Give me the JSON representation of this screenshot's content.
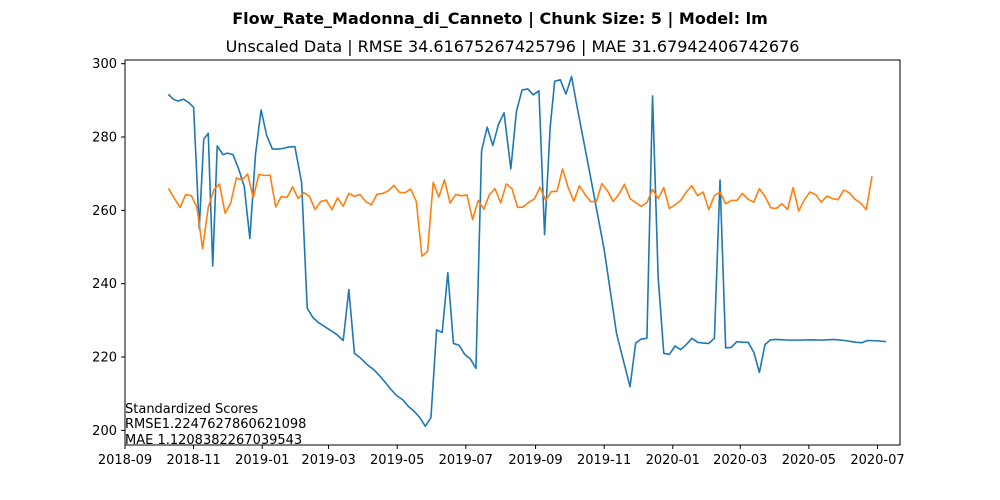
{
  "chart_data": {
    "type": "line",
    "title": "Flow_Rate_Madonna_di_Canneto | Chunk Size: 5 | Model: lm",
    "subtitle": "Unscaled Data | RMSE 34.61675267425796 | MAE 31.67942406742676",
    "xlabel": "",
    "ylabel": "",
    "grid": false,
    "x_ticks": [
      "2018-09",
      "2018-11",
      "2019-01",
      "2019-03",
      "2019-05",
      "2019-07",
      "2019-09",
      "2019-11",
      "2020-01",
      "2020-03",
      "2020-05",
      "2020-07"
    ],
    "y_ticks": [
      200,
      220,
      240,
      260,
      280,
      300
    ],
    "xlim": [
      "2018-09-01",
      "2020-07-21"
    ],
    "ylim": [
      196,
      301
    ],
    "colors": [
      "#1f77b4",
      "#ff7f0e"
    ],
    "series": [
      {
        "points": [
          [
            "2018-10-10",
            291.5
          ],
          [
            "2018-10-14",
            290.3
          ],
          [
            "2018-10-18",
            289.8
          ],
          [
            "2018-10-23",
            290.3
          ],
          [
            "2018-10-28",
            289.3
          ],
          [
            "2018-11-01",
            288.1
          ],
          [
            "2018-11-06",
            255.0
          ],
          [
            "2018-11-10",
            279.4
          ],
          [
            "2018-11-14",
            281.0
          ],
          [
            "2018-11-18",
            244.8
          ],
          [
            "2018-11-22",
            277.6
          ],
          [
            "2018-11-27",
            275.2
          ],
          [
            "2018-12-01",
            275.6
          ],
          [
            "2018-12-06",
            275.2
          ],
          [
            "2018-12-11",
            271.3
          ],
          [
            "2018-12-16",
            266.5
          ],
          [
            "2018-12-21",
            252.3
          ],
          [
            "2018-12-26",
            275.2
          ],
          [
            "2018-12-31",
            287.4
          ],
          [
            "2019-01-05",
            280.4
          ],
          [
            "2019-01-10",
            276.7
          ],
          [
            "2019-01-15",
            276.7
          ],
          [
            "2019-01-20",
            276.9
          ],
          [
            "2019-01-25",
            277.3
          ],
          [
            "2019-01-30",
            277.4
          ],
          [
            "2019-02-05",
            267.6
          ],
          [
            "2019-02-10",
            233.3
          ],
          [
            "2019-02-15",
            230.8
          ],
          [
            "2019-02-20",
            229.4
          ],
          [
            "2019-02-26",
            228.2
          ],
          [
            "2019-03-03",
            227.2
          ],
          [
            "2019-03-08",
            226.2
          ],
          [
            "2019-03-14",
            224.5
          ],
          [
            "2019-03-19",
            238.4
          ],
          [
            "2019-03-24",
            221.0
          ],
          [
            "2019-03-29",
            219.8
          ],
          [
            "2019-04-04",
            218.0
          ],
          [
            "2019-04-10",
            216.6
          ],
          [
            "2019-04-15",
            215.0
          ],
          [
            "2019-04-20",
            213.2
          ],
          [
            "2019-04-25",
            211.3
          ],
          [
            "2019-04-30",
            209.6
          ],
          [
            "2019-05-06",
            208.3
          ],
          [
            "2019-05-11",
            206.5
          ],
          [
            "2019-05-16",
            205.2
          ],
          [
            "2019-05-21",
            203.5
          ],
          [
            "2019-05-26",
            201.1
          ],
          [
            "2019-05-31",
            203.5
          ],
          [
            "2019-06-05",
            227.4
          ],
          [
            "2019-06-10",
            226.7
          ],
          [
            "2019-06-15",
            243.0
          ],
          [
            "2019-06-20",
            223.7
          ],
          [
            "2019-06-25",
            223.2
          ],
          [
            "2019-06-30",
            220.7
          ],
          [
            "2019-07-05",
            219.5
          ],
          [
            "2019-07-10",
            216.9
          ],
          [
            "2019-07-15",
            276.2
          ],
          [
            "2019-07-20",
            282.7
          ],
          [
            "2019-07-25",
            277.7
          ],
          [
            "2019-07-30",
            283.4
          ],
          [
            "2019-08-04",
            286.6
          ],
          [
            "2019-08-10",
            271.3
          ],
          [
            "2019-08-15",
            287.0
          ],
          [
            "2019-08-20",
            292.8
          ],
          [
            "2019-08-25",
            293.1
          ],
          [
            "2019-08-30",
            291.5
          ],
          [
            "2019-09-04",
            292.6
          ],
          [
            "2019-09-09",
            253.4
          ],
          [
            "2019-09-14",
            282.7
          ],
          [
            "2019-09-18",
            295.2
          ],
          [
            "2019-09-23",
            295.6
          ],
          [
            "2019-09-28",
            291.7
          ],
          [
            "2019-10-03",
            296.5
          ],
          [
            "2019-10-08",
            288.1
          ],
          [
            "2019-10-19",
            270.5
          ],
          [
            "2019-11-01",
            249.3
          ],
          [
            "2019-11-12",
            226.4
          ],
          [
            "2019-11-24",
            211.9
          ],
          [
            "2019-11-29",
            223.8
          ],
          [
            "2019-12-04",
            224.9
          ],
          [
            "2019-12-09",
            225.1
          ],
          [
            "2019-12-14",
            291.2
          ],
          [
            "2019-12-19",
            241.7
          ],
          [
            "2019-12-24",
            221.0
          ],
          [
            "2019-12-29",
            220.7
          ],
          [
            "2020-01-03",
            223.0
          ],
          [
            "2020-01-08",
            222.0
          ],
          [
            "2020-01-13",
            223.4
          ],
          [
            "2020-01-18",
            225.1
          ],
          [
            "2020-01-23",
            224.0
          ],
          [
            "2020-01-28",
            223.8
          ],
          [
            "2020-02-02",
            223.7
          ],
          [
            "2020-02-07",
            225.1
          ],
          [
            "2020-02-12",
            268.3
          ],
          [
            "2020-02-17",
            222.5
          ],
          [
            "2020-02-22",
            222.6
          ],
          [
            "2020-02-27",
            224.2
          ],
          [
            "2020-03-03",
            224.0
          ],
          [
            "2020-03-08",
            224.0
          ],
          [
            "2020-03-13",
            221.3
          ],
          [
            "2020-03-18",
            215.8
          ],
          [
            "2020-03-23",
            223.4
          ],
          [
            "2020-03-28",
            224.7
          ],
          [
            "2020-04-02",
            224.8
          ],
          [
            "2020-04-13",
            224.6
          ],
          [
            "2020-04-23",
            224.6
          ],
          [
            "2020-05-03",
            224.7
          ],
          [
            "2020-05-13",
            224.6
          ],
          [
            "2020-05-23",
            224.8
          ],
          [
            "2020-06-02",
            224.5
          ],
          [
            "2020-06-12",
            224.0
          ],
          [
            "2020-06-17",
            223.9
          ],
          [
            "2020-06-22",
            224.5
          ],
          [
            "2020-07-02",
            224.4
          ],
          [
            "2020-07-08",
            224.2
          ]
        ]
      },
      {
        "points": [
          [
            "2018-10-10",
            265.8
          ],
          [
            "2018-10-15",
            263.2
          ],
          [
            "2018-10-20",
            260.8
          ],
          [
            "2018-10-25",
            264.3
          ],
          [
            "2018-10-30",
            264.0
          ],
          [
            "2018-11-04",
            260.8
          ],
          [
            "2018-11-09",
            249.5
          ],
          [
            "2018-11-14",
            260.8
          ],
          [
            "2018-11-19",
            265.6
          ],
          [
            "2018-11-24",
            267.2
          ],
          [
            "2018-11-29",
            259.2
          ],
          [
            "2018-12-04",
            262.0
          ],
          [
            "2018-12-09",
            268.8
          ],
          [
            "2018-12-14",
            268.3
          ],
          [
            "2018-12-19",
            269.9
          ],
          [
            "2018-12-24",
            263.4
          ],
          [
            "2018-12-29",
            269.8
          ],
          [
            "2019-01-03",
            269.5
          ],
          [
            "2019-01-08",
            269.6
          ],
          [
            "2019-01-13",
            260.9
          ],
          [
            "2019-01-18",
            263.8
          ],
          [
            "2019-01-23",
            263.5
          ],
          [
            "2019-01-28",
            266.4
          ],
          [
            "2019-02-02",
            263.2
          ],
          [
            "2019-02-07",
            264.8
          ],
          [
            "2019-02-12",
            263.8
          ],
          [
            "2019-02-17",
            260.2
          ],
          [
            "2019-02-22",
            262.4
          ],
          [
            "2019-02-27",
            262.8
          ],
          [
            "2019-03-04",
            260.2
          ],
          [
            "2019-03-09",
            263.4
          ],
          [
            "2019-03-14",
            261.1
          ],
          [
            "2019-03-19",
            264.6
          ],
          [
            "2019-03-24",
            263.8
          ],
          [
            "2019-03-29",
            264.3
          ],
          [
            "2019-04-03",
            262.4
          ],
          [
            "2019-04-08",
            261.5
          ],
          [
            "2019-04-13",
            264.4
          ],
          [
            "2019-04-18",
            264.6
          ],
          [
            "2019-04-23",
            265.3
          ],
          [
            "2019-04-28",
            266.8
          ],
          [
            "2019-05-03",
            264.9
          ],
          [
            "2019-05-08",
            264.8
          ],
          [
            "2019-05-13",
            265.8
          ],
          [
            "2019-05-18",
            262.4
          ],
          [
            "2019-05-23",
            247.5
          ],
          [
            "2019-05-28",
            248.8
          ],
          [
            "2019-06-02",
            267.6
          ],
          [
            "2019-06-07",
            263.6
          ],
          [
            "2019-06-12",
            268.3
          ],
          [
            "2019-06-17",
            262.0
          ],
          [
            "2019-06-22",
            264.3
          ],
          [
            "2019-06-27",
            264.0
          ],
          [
            "2019-07-02",
            264.2
          ],
          [
            "2019-07-07",
            257.5
          ],
          [
            "2019-07-12",
            262.7
          ],
          [
            "2019-07-17",
            260.3
          ],
          [
            "2019-07-22",
            264.3
          ],
          [
            "2019-07-27",
            265.9
          ],
          [
            "2019-08-01",
            262.0
          ],
          [
            "2019-08-06",
            267.2
          ],
          [
            "2019-08-11",
            265.9
          ],
          [
            "2019-08-16",
            260.8
          ],
          [
            "2019-08-21",
            260.9
          ],
          [
            "2019-08-26",
            262.2
          ],
          [
            "2019-08-31",
            263.1
          ],
          [
            "2019-09-05",
            266.3
          ],
          [
            "2019-09-10",
            262.7
          ],
          [
            "2019-09-15",
            265.1
          ],
          [
            "2019-09-20",
            265.2
          ],
          [
            "2019-09-25",
            271.3
          ],
          [
            "2019-09-30",
            266.2
          ],
          [
            "2019-10-05",
            262.5
          ],
          [
            "2019-10-10",
            266.7
          ],
          [
            "2019-10-15",
            264.3
          ],
          [
            "2019-10-20",
            262.4
          ],
          [
            "2019-10-25",
            262.4
          ],
          [
            "2019-10-30",
            267.3
          ],
          [
            "2019-11-04",
            265.3
          ],
          [
            "2019-11-09",
            262.4
          ],
          [
            "2019-11-14",
            264.3
          ],
          [
            "2019-11-19",
            267.1
          ],
          [
            "2019-11-24",
            263.2
          ],
          [
            "2019-11-29",
            262.1
          ],
          [
            "2019-12-04",
            261.1
          ],
          [
            "2019-12-09",
            262.1
          ],
          [
            "2019-12-14",
            265.7
          ],
          [
            "2019-12-19",
            263.2
          ],
          [
            "2019-12-24",
            266.2
          ],
          [
            "2019-12-29",
            260.5
          ],
          [
            "2020-01-03",
            261.5
          ],
          [
            "2020-01-08",
            262.7
          ],
          [
            "2020-01-13",
            265.0
          ],
          [
            "2020-01-18",
            266.7
          ],
          [
            "2020-01-23",
            264.0
          ],
          [
            "2020-01-28",
            265.0
          ],
          [
            "2020-02-02",
            260.2
          ],
          [
            "2020-02-07",
            264.0
          ],
          [
            "2020-02-12",
            265.0
          ],
          [
            "2020-02-17",
            261.8
          ],
          [
            "2020-02-22",
            262.7
          ],
          [
            "2020-02-27",
            262.7
          ],
          [
            "2020-03-03",
            264.6
          ],
          [
            "2020-03-08",
            263.0
          ],
          [
            "2020-03-13",
            262.2
          ],
          [
            "2020-03-18",
            265.9
          ],
          [
            "2020-03-23",
            263.8
          ],
          [
            "2020-03-28",
            260.7
          ],
          [
            "2020-04-02",
            260.5
          ],
          [
            "2020-04-07",
            261.8
          ],
          [
            "2020-04-12",
            260.2
          ],
          [
            "2020-04-17",
            266.2
          ],
          [
            "2020-04-22",
            259.8
          ],
          [
            "2020-04-27",
            262.9
          ],
          [
            "2020-05-02",
            265.0
          ],
          [
            "2020-05-07",
            264.3
          ],
          [
            "2020-05-12",
            262.2
          ],
          [
            "2020-05-17",
            263.9
          ],
          [
            "2020-05-22",
            263.2
          ],
          [
            "2020-05-27",
            262.9
          ],
          [
            "2020-06-01",
            265.5
          ],
          [
            "2020-06-06",
            264.8
          ],
          [
            "2020-06-11",
            263.0
          ],
          [
            "2020-06-16",
            262.0
          ],
          [
            "2020-06-21",
            260.2
          ],
          [
            "2020-06-26",
            269.1
          ]
        ]
      }
    ],
    "annotation": [
      "Standardized Scores",
      "RMSE1.2247627860621098",
      "MAE 1.1208382267039543"
    ]
  }
}
